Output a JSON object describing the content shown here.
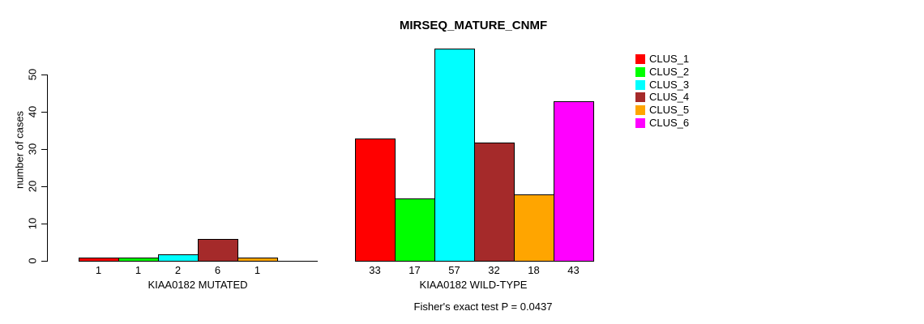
{
  "chart_data": {
    "type": "bar",
    "title": "MIRSEQ_MATURE_CNMF",
    "ylabel": "number of cases",
    "xlabel": "",
    "yticks": [
      0,
      10,
      20,
      30,
      40,
      50
    ],
    "ylim": [
      0,
      57
    ],
    "grid": false,
    "legend_position": "right",
    "legend": [
      {
        "name": "CLUS_1",
        "color": "#FF0000"
      },
      {
        "name": "CLUS_2",
        "color": "#00FF00"
      },
      {
        "name": "CLUS_3",
        "color": "#00FFFF"
      },
      {
        "name": "CLUS_4",
        "color": "#A52A2A"
      },
      {
        "name": "CLUS_5",
        "color": "#FFA500"
      },
      {
        "name": "CLUS_6",
        "color": "#FF00FF"
      }
    ],
    "groups": [
      {
        "label": "KIAA0182 MUTATED",
        "values": [
          1,
          1,
          2,
          6,
          1,
          0
        ],
        "bar_labels": [
          "1",
          "1",
          "2",
          "6",
          "1",
          ""
        ]
      },
      {
        "label": "KIAA0182 WILD-TYPE",
        "values": [
          33,
          17,
          57,
          32,
          18,
          43
        ],
        "bar_labels": [
          "33",
          "17",
          "57",
          "32",
          "18",
          "43"
        ]
      }
    ],
    "annotation": "Fisher's exact test P = 0.0437"
  }
}
